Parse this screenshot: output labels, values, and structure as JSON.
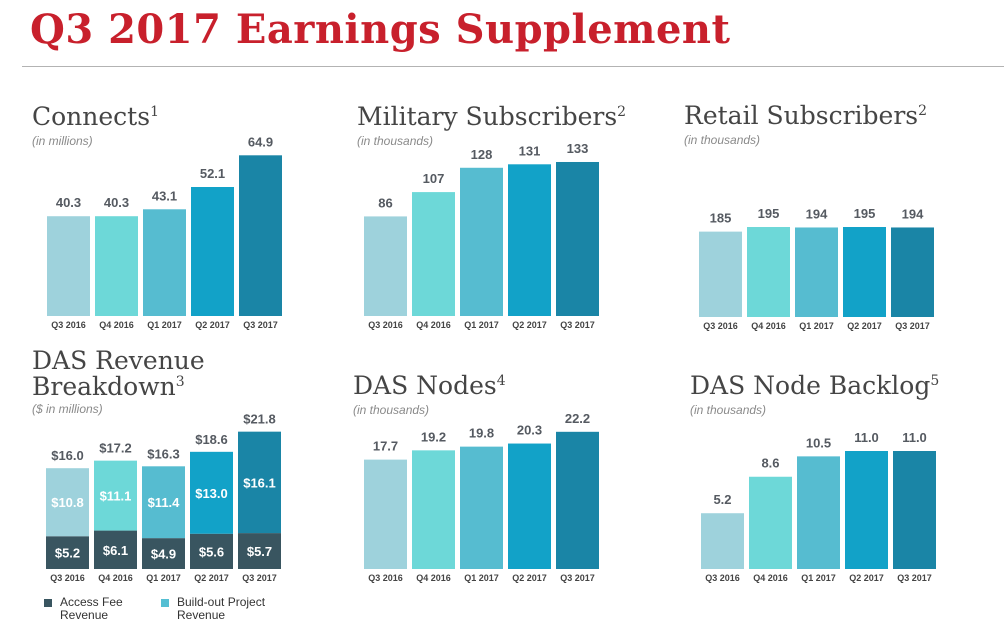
{
  "page": {
    "title": "Q3 2017 Earnings Supplement"
  },
  "colors": {
    "title_red": "#c8202c",
    "bar_palette": [
      "#9ed2dc",
      "#6dd8d8",
      "#56bcd0",
      "#12a2c8",
      "#1a85a6"
    ],
    "access_fee": "#395560",
    "buildout": "#55bfd3"
  },
  "panels": [
    {
      "title": "Connects",
      "footnote": "1",
      "subtitle": "(in millions)"
    },
    {
      "title": "Military Subscribers",
      "footnote": "2",
      "subtitle": "(in thousands)"
    },
    {
      "title": "Retail Subscribers",
      "footnote": "2",
      "subtitle": "(in thousands)"
    },
    {
      "title": "DAS Revenue Breakdown",
      "title_line1": "DAS Revenue",
      "title_line2": "Breakdown",
      "footnote": "3",
      "subtitle": "($ in millions)"
    },
    {
      "title": "DAS Nodes",
      "footnote": "4",
      "subtitle": "(in thousands)"
    },
    {
      "title": "DAS Node Backlog",
      "footnote": "5",
      "subtitle": "(in thousands)"
    }
  ],
  "legend": [
    {
      "label": "Access Fee Revenue",
      "color": "#395560"
    },
    {
      "label": "Build-out Project Revenue",
      "color": "#55bfd3"
    }
  ],
  "chart_data": [
    {
      "type": "bar",
      "title": "Connects",
      "unit": "millions",
      "categories": [
        "Q3 2016",
        "Q4 2016",
        "Q1 2017",
        "Q2 2017",
        "Q3 2017"
      ],
      "values": [
        40.3,
        40.3,
        43.1,
        52.1,
        64.9
      ],
      "labels": [
        "40.3",
        "40.3",
        "43.1",
        "52.1",
        "64.9"
      ]
    },
    {
      "type": "bar",
      "title": "Military Subscribers",
      "unit": "thousands",
      "categories": [
        "Q3 2016",
        "Q4 2016",
        "Q1 2017",
        "Q2 2017",
        "Q3 2017"
      ],
      "values": [
        86,
        107,
        128,
        131,
        133
      ],
      "labels": [
        "86",
        "107",
        "128",
        "131",
        "133"
      ]
    },
    {
      "type": "bar",
      "title": "Retail Subscribers",
      "unit": "thousands",
      "categories": [
        "Q3 2016",
        "Q4 2016",
        "Q1 2017",
        "Q2 2017",
        "Q3 2017"
      ],
      "values": [
        185,
        195,
        194,
        195,
        194
      ],
      "labels": [
        "185",
        "195",
        "194",
        "195",
        "194"
      ]
    },
    {
      "type": "bar",
      "stacked": true,
      "title": "DAS Revenue Breakdown",
      "unit": "$ millions",
      "categories": [
        "Q3 2016",
        "Q4 2016",
        "Q1 2017",
        "Q2 2017",
        "Q3 2017"
      ],
      "series": [
        {
          "name": "Access Fee Revenue",
          "values": [
            5.2,
            6.1,
            4.9,
            5.6,
            5.7
          ],
          "labels": [
            "$5.2",
            "$6.1",
            "$4.9",
            "$5.6",
            "$5.7"
          ]
        },
        {
          "name": "Build-out Project Revenue",
          "values": [
            10.8,
            11.1,
            11.4,
            13.0,
            16.1
          ],
          "labels": [
            "$10.8",
            "$11.1",
            "$11.4",
            "$13.0",
            "$16.1"
          ]
        }
      ],
      "totals": [
        16.0,
        17.2,
        16.3,
        18.6,
        21.8
      ],
      "total_labels": [
        "$16.0",
        "$17.2",
        "$16.3",
        "$18.6",
        "$21.8"
      ]
    },
    {
      "type": "bar",
      "title": "DAS Nodes",
      "unit": "thousands",
      "categories": [
        "Q3 2016",
        "Q4 2016",
        "Q1 2017",
        "Q2 2017",
        "Q3 2017"
      ],
      "values": [
        17.7,
        19.2,
        19.8,
        20.3,
        22.2
      ],
      "labels": [
        "17.7",
        "19.2",
        "19.8",
        "20.3",
        "22.2"
      ]
    },
    {
      "type": "bar",
      "title": "DAS Node Backlog",
      "unit": "thousands",
      "categories": [
        "Q3 2016",
        "Q4 2016",
        "Q1 2017",
        "Q2 2017",
        "Q3 2017"
      ],
      "values": [
        5.2,
        8.6,
        10.5,
        11.0,
        11.0
      ],
      "labels": [
        "5.2",
        "8.6",
        "10.5",
        "11.0",
        "11.0"
      ]
    }
  ]
}
